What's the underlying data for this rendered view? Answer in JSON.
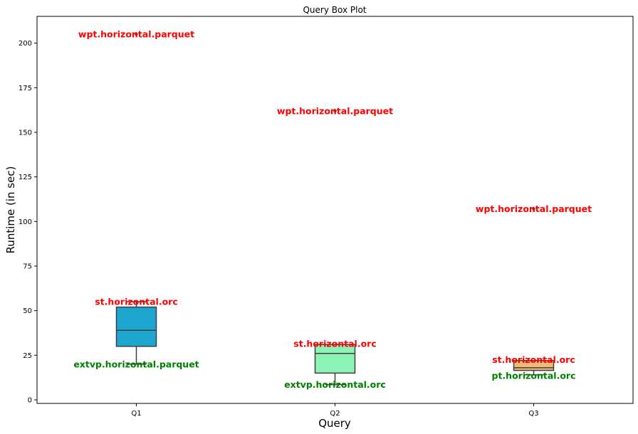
{
  "chart_data": {
    "type": "box",
    "title": "Query Box Plot",
    "xlabel": "Query",
    "ylabel": "Runtime (in sec)",
    "ylim": [
      -2,
      215
    ],
    "yticks": [
      0,
      25,
      50,
      75,
      100,
      125,
      150,
      175,
      200
    ],
    "grid": false,
    "categories": [
      "Q1",
      "Q2",
      "Q3"
    ],
    "boxes": [
      {
        "category": "Q1",
        "color": "#1ca6d0",
        "whisker_low": 20,
        "q1": 30,
        "median": 39,
        "q3": 52,
        "whisker_high": 55,
        "outliers": [
          205
        ]
      },
      {
        "category": "Q2",
        "color": "#8df2b5",
        "whisker_low": 8.5,
        "q1": 15,
        "median": 26,
        "q3": 31,
        "whisker_high": 31,
        "outliers": [
          162
        ]
      },
      {
        "category": "Q3",
        "color": "#f2ba78",
        "whisker_low": 14,
        "q1": 16.5,
        "median": 18,
        "q3": 22,
        "whisker_high": 22,
        "outliers": [
          107
        ]
      }
    ],
    "annotations": [
      {
        "text": "wpt.horizontal.parquet",
        "category": "Q1",
        "y": 205,
        "color": "#ff0000"
      },
      {
        "text": "st.horizontal.orc",
        "category": "Q1",
        "y": 55,
        "color": "#ff0000"
      },
      {
        "text": "extvp.horizontal.parquet",
        "category": "Q1",
        "y": 20,
        "color": "#008000"
      },
      {
        "text": "wpt.horizontal.parquet",
        "category": "Q2",
        "y": 162,
        "color": "#ff0000"
      },
      {
        "text": "st.horizontal.orc",
        "category": "Q2",
        "y": 31.5,
        "color": "#ff0000"
      },
      {
        "text": "extvp.horizontal.orc",
        "category": "Q2",
        "y": 8.5,
        "color": "#008000"
      },
      {
        "text": "wpt.horizontal.parquet",
        "category": "Q3",
        "y": 107,
        "color": "#ff0000"
      },
      {
        "text": "st.horizontal.orc",
        "category": "Q3",
        "y": 22.5,
        "color": "#ff0000"
      },
      {
        "text": "pt.horizontal.orc",
        "category": "Q3",
        "y": 13.5,
        "color": "#008000"
      }
    ]
  }
}
